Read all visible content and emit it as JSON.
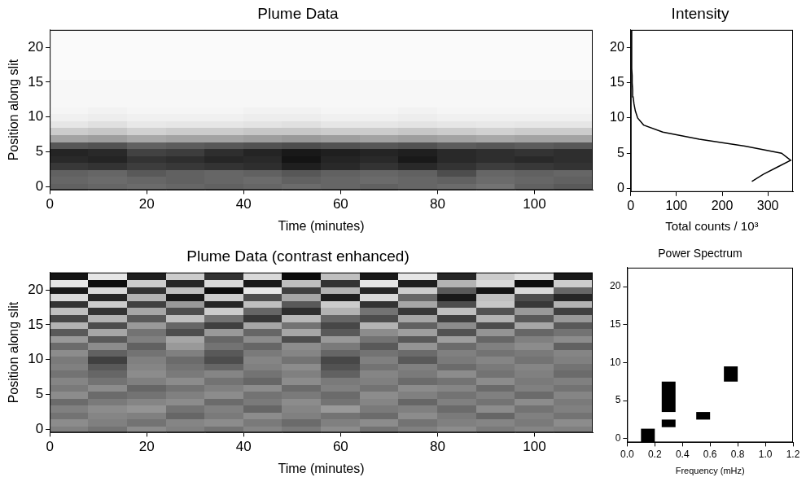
{
  "chart_data": [
    {
      "type": "heatmap",
      "title": "Plume Data",
      "x_label": "Time (minutes)",
      "y_label": "Position along slit",
      "xlim": [
        0,
        112
      ],
      "xticks": [
        0,
        20,
        40,
        60,
        80,
        100
      ],
      "ylim": [
        -0.5,
        22.5
      ],
      "yticks": [
        0,
        5,
        10,
        15,
        20
      ],
      "grid": false,
      "x_edges": [
        0,
        8,
        16,
        24,
        32,
        40,
        48,
        56,
        64,
        72,
        80,
        88,
        96,
        104,
        112
      ],
      "y": [
        0,
        1,
        2,
        3,
        4,
        5,
        6,
        7,
        8,
        9,
        10,
        11,
        12,
        13,
        14,
        15,
        16,
        17,
        18,
        19,
        20,
        21,
        22
      ],
      "cell_range": [
        0,
        100
      ],
      "cells": [
        [
          62,
          60,
          58,
          60,
          62,
          60,
          58,
          60,
          62,
          60,
          58,
          55,
          62,
          65
        ],
        [
          60,
          58,
          60,
          62,
          60,
          58,
          62,
          60,
          58,
          60,
          62,
          58,
          60,
          62
        ],
        [
          62,
          60,
          65,
          62,
          60,
          62,
          66,
          62,
          60,
          62,
          70,
          60,
          62,
          60
        ],
        [
          78,
          80,
          76,
          78,
          80,
          82,
          88,
          84,
          80,
          84,
          80,
          76,
          78,
          80
        ],
        [
          84,
          86,
          80,
          82,
          85,
          84,
          92,
          86,
          84,
          90,
          84,
          82,
          84,
          82
        ],
        [
          86,
          84,
          74,
          76,
          82,
          86,
          90,
          88,
          86,
          88,
          84,
          82,
          80,
          82
        ],
        [
          66,
          68,
          62,
          64,
          66,
          68,
          70,
          68,
          66,
          68,
          64,
          66,
          64,
          66
        ],
        [
          36,
          38,
          34,
          36,
          36,
          38,
          40,
          38,
          36,
          38,
          36,
          34,
          36,
          36
        ],
        [
          20,
          22,
          18,
          20,
          20,
          22,
          22,
          20,
          20,
          22,
          20,
          18,
          20,
          20
        ],
        [
          10,
          12,
          9,
          10,
          10,
          11,
          12,
          10,
          10,
          11,
          10,
          9,
          10,
          10
        ],
        [
          6,
          7,
          6,
          6,
          6,
          7,
          7,
          6,
          6,
          7,
          6,
          6,
          6,
          6
        ],
        [
          4,
          5,
          4,
          4,
          4,
          5,
          5,
          4,
          4,
          5,
          4,
          4,
          4,
          4
        ],
        [
          3,
          3,
          3,
          3,
          3,
          3,
          3,
          3,
          3,
          3,
          3,
          3,
          3,
          3
        ],
        [
          3,
          3,
          3,
          3,
          3,
          3,
          3,
          3,
          3,
          3,
          3,
          3,
          3,
          3
        ],
        [
          3,
          3,
          3,
          3,
          3,
          3,
          3,
          3,
          3,
          3,
          3,
          3,
          3,
          3
        ],
        [
          3,
          3,
          3,
          3,
          3,
          3,
          3,
          3,
          3,
          3,
          3,
          3,
          3,
          3
        ],
        [
          2,
          2,
          2,
          2,
          2,
          2,
          2,
          2,
          2,
          2,
          2,
          2,
          2,
          2
        ],
        [
          2,
          2,
          2,
          2,
          2,
          2,
          2,
          2,
          2,
          2,
          2,
          2,
          2,
          2
        ],
        [
          2,
          2,
          2,
          2,
          2,
          2,
          2,
          2,
          2,
          2,
          2,
          2,
          2,
          2
        ],
        [
          2,
          2,
          2,
          2,
          2,
          2,
          2,
          2,
          2,
          2,
          2,
          2,
          2,
          2
        ],
        [
          2,
          2,
          2,
          2,
          2,
          2,
          2,
          2,
          2,
          2,
          2,
          2,
          2,
          2
        ],
        [
          2,
          2,
          2,
          2,
          2,
          2,
          2,
          2,
          2,
          2,
          2,
          2,
          2,
          2
        ],
        [
          2,
          2,
          2,
          2,
          2,
          2,
          2,
          2,
          2,
          2,
          2,
          2,
          2,
          2
        ]
      ]
    },
    {
      "type": "line",
      "title": "Intensity",
      "x_label": "Total counts / 10³",
      "color": "#000000",
      "xlim": [
        0,
        355
      ],
      "xticks": [
        0,
        100,
        200,
        300
      ],
      "ylim": [
        -0.5,
        22.5
      ],
      "yticks": [
        0,
        5,
        10,
        15,
        20
      ],
      "grid": false,
      "x": [
        265,
        290,
        320,
        350,
        330,
        250,
        150,
        70,
        28,
        15,
        10,
        7,
        5,
        4,
        3,
        3,
        2,
        2,
        2,
        2,
        2,
        2,
        2
      ],
      "y": [
        1,
        2,
        3,
        4,
        5,
        6,
        7,
        8,
        9,
        10,
        11,
        12,
        13,
        14,
        15,
        16,
        17,
        18,
        19,
        20,
        21,
        22,
        22.5
      ]
    },
    {
      "type": "heatmap",
      "title": "Plume Data (contrast enhanced)",
      "x_label": "Time (minutes)",
      "y_label": "Position along slit",
      "xlim": [
        0,
        112
      ],
      "xticks": [
        0,
        20,
        40,
        60,
        80,
        100
      ],
      "ylim": [
        -0.5,
        22.5
      ],
      "yticks": [
        0,
        5,
        10,
        15,
        20
      ],
      "grid": false,
      "x_edges": [
        0,
        8,
        16,
        24,
        32,
        40,
        48,
        56,
        64,
        72,
        80,
        88,
        96,
        104,
        112
      ],
      "y": [
        0,
        1,
        2,
        3,
        4,
        5,
        6,
        7,
        8,
        9,
        10,
        11,
        12,
        13,
        14,
        15,
        16,
        17,
        18,
        19,
        20,
        21,
        22
      ],
      "cell_range": [
        0,
        100
      ],
      "cells": [
        [
          50,
          55,
          45,
          50,
          55,
          48,
          52,
          45,
          55,
          50,
          45,
          52,
          48,
          50
        ],
        [
          45,
          50,
          55,
          48,
          45,
          52,
          58,
          50,
          45,
          55,
          50,
          48,
          52,
          45
        ],
        [
          55,
          48,
          50,
          60,
          52,
          45,
          50,
          55,
          58,
          45,
          52,
          60,
          50,
          55
        ],
        [
          50,
          45,
          42,
          55,
          50,
          60,
          48,
          40,
          52,
          50,
          58,
          45,
          55,
          50
        ],
        [
          58,
          52,
          48,
          45,
          58,
          52,
          45,
          55,
          48,
          60,
          50,
          55,
          45,
          52
        ],
        [
          45,
          58,
          55,
          50,
          45,
          55,
          52,
          58,
          45,
          50,
          55,
          50,
          58,
          48
        ],
        [
          52,
          45,
          60,
          55,
          50,
          45,
          58,
          50,
          55,
          45,
          48,
          58,
          50,
          55
        ],
        [
          48,
          55,
          50,
          45,
          55,
          60,
          45,
          52,
          50,
          58,
          55,
          45,
          52,
          50
        ],
        [
          55,
          60,
          45,
          52,
          48,
          55,
          50,
          62,
          48,
          52,
          45,
          55,
          50,
          58
        ],
        [
          50,
          65,
          48,
          55,
          60,
          50,
          45,
          68,
          55,
          50,
          58,
          52,
          48,
          55
        ],
        [
          52,
          75,
          50,
          58,
          70,
          48,
          55,
          72,
          50,
          65,
          52,
          48,
          55,
          50
        ],
        [
          45,
          62,
          55,
          50,
          65,
          52,
          48,
          60,
          55,
          58,
          50,
          55,
          52,
          48
        ],
        [
          58,
          45,
          62,
          40,
          55,
          60,
          45,
          52,
          65,
          42,
          58,
          50,
          45,
          62
        ],
        [
          40,
          65,
          50,
          35,
          60,
          45,
          70,
          40,
          55,
          65,
          38,
          60,
          50,
          45
        ],
        [
          65,
          35,
          55,
          70,
          40,
          60,
          35,
          65,
          45,
          38,
          68,
          42,
          60,
          55
        ],
        [
          30,
          70,
          40,
          60,
          75,
          35,
          55,
          72,
          30,
          62,
          45,
          70,
          35,
          65
        ],
        [
          72,
          30,
          65,
          25,
          55,
          78,
          28,
          60,
          70,
          35,
          75,
          30,
          65,
          40
        ],
        [
          25,
          80,
          35,
          70,
          20,
          60,
          82,
          30,
          55,
          78,
          25,
          68,
          40,
          75
        ],
        [
          80,
          20,
          75,
          40,
          85,
          25,
          65,
          20,
          80,
          35,
          70,
          22,
          78,
          30
        ],
        [
          15,
          85,
          30,
          90,
          20,
          70,
          35,
          88,
          15,
          60,
          90,
          25,
          70,
          85
        ],
        [
          90,
          15,
          80,
          25,
          95,
          10,
          75,
          30,
          85,
          20,
          65,
          92,
          15,
          60
        ],
        [
          10,
          95,
          20,
          85,
          15,
          90,
          25,
          80,
          10,
          88,
          30,
          15,
          95,
          20
        ],
        [
          92,
          10,
          88,
          20,
          80,
          15,
          95,
          25,
          90,
          10,
          85,
          20,
          12,
          90
        ]
      ]
    },
    {
      "type": "boxes",
      "title": "Power Spectrum",
      "x_label": "Frequency (mHz)",
      "color": "#000000",
      "xlim": [
        0,
        1.2
      ],
      "xticks": [
        {
          "value": 0,
          "label": "0.0"
        },
        0.2,
        0.4,
        0.6,
        0.8,
        {
          "value": 1,
          "label": "1.0"
        },
        1.2
      ],
      "ylim": [
        -0.5,
        22.5
      ],
      "yticks": [
        0,
        5,
        10,
        15,
        20
      ],
      "grid": false,
      "boxes": [
        {
          "x": [
            0.1,
            0.2
          ],
          "y": [
            -0.5,
            1.3
          ]
        },
        {
          "x": [
            0.25,
            0.35
          ],
          "y": [
            1.5,
            2.5
          ]
        },
        {
          "x": [
            0.25,
            0.35
          ],
          "y": [
            3.5,
            7.5
          ]
        },
        {
          "x": [
            0.5,
            0.6
          ],
          "y": [
            2.5,
            3.5
          ]
        },
        {
          "x": [
            0.7,
            0.8
          ],
          "y": [
            7.5,
            9.5
          ]
        }
      ]
    }
  ]
}
